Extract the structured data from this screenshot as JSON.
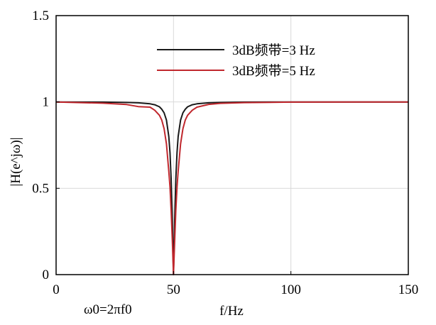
{
  "chart_data": {
    "type": "line",
    "title": "",
    "xlabel": "f/Hz",
    "ylabel": "|H(e^jω)|",
    "xlim": [
      0,
      150
    ],
    "ylim": [
      0,
      1.5
    ],
    "x_ticks": [
      0,
      50,
      100,
      150
    ],
    "y_ticks": [
      0,
      0.5,
      1,
      1.5
    ],
    "x_tick_labels": [
      "0",
      "50",
      "100",
      "150"
    ],
    "y_tick_labels": [
      "0",
      "0.5",
      "1",
      "1.5"
    ],
    "grid": true,
    "legend_position": "top-center",
    "annotation": "ω0=2πf0",
    "notch_center": 50,
    "series": [
      {
        "name": "3dB频带=3 Hz",
        "color": "#1a1a1a",
        "x": [
          0,
          20,
          30,
          35,
          40,
          42,
          44,
          45,
          46,
          47,
          48,
          48.5,
          49,
          49.5,
          50,
          50.5,
          51,
          51.5,
          52,
          53,
          54,
          55,
          56,
          58,
          60,
          65,
          70,
          80,
          100,
          150
        ],
        "values": [
          1.0,
          0.999,
          0.997,
          0.995,
          0.989,
          0.984,
          0.972,
          0.958,
          0.937,
          0.895,
          0.8,
          0.707,
          0.555,
          0.316,
          0.0,
          0.316,
          0.555,
          0.707,
          0.8,
          0.895,
          0.937,
          0.958,
          0.972,
          0.984,
          0.989,
          0.995,
          0.997,
          0.999,
          1.0,
          1.0
        ]
      },
      {
        "name": "3dB频带=5 Hz",
        "color": "#c0272d",
        "x": [
          0,
          20,
          30,
          35,
          40,
          42,
          44,
          45,
          46,
          47,
          48,
          48.5,
          49,
          49.5,
          50,
          50.5,
          51,
          51.5,
          52,
          53,
          54,
          55,
          56,
          58,
          60,
          65,
          70,
          80,
          100,
          150
        ],
        "values": [
          1.0,
          0.993,
          0.985,
          0.973,
          0.97,
          0.952,
          0.923,
          0.895,
          0.845,
          0.757,
          0.599,
          0.507,
          0.371,
          0.196,
          0.0,
          0.196,
          0.371,
          0.507,
          0.599,
          0.757,
          0.845,
          0.895,
          0.923,
          0.952,
          0.97,
          0.986,
          0.992,
          0.996,
          0.999,
          1.0
        ]
      }
    ]
  }
}
